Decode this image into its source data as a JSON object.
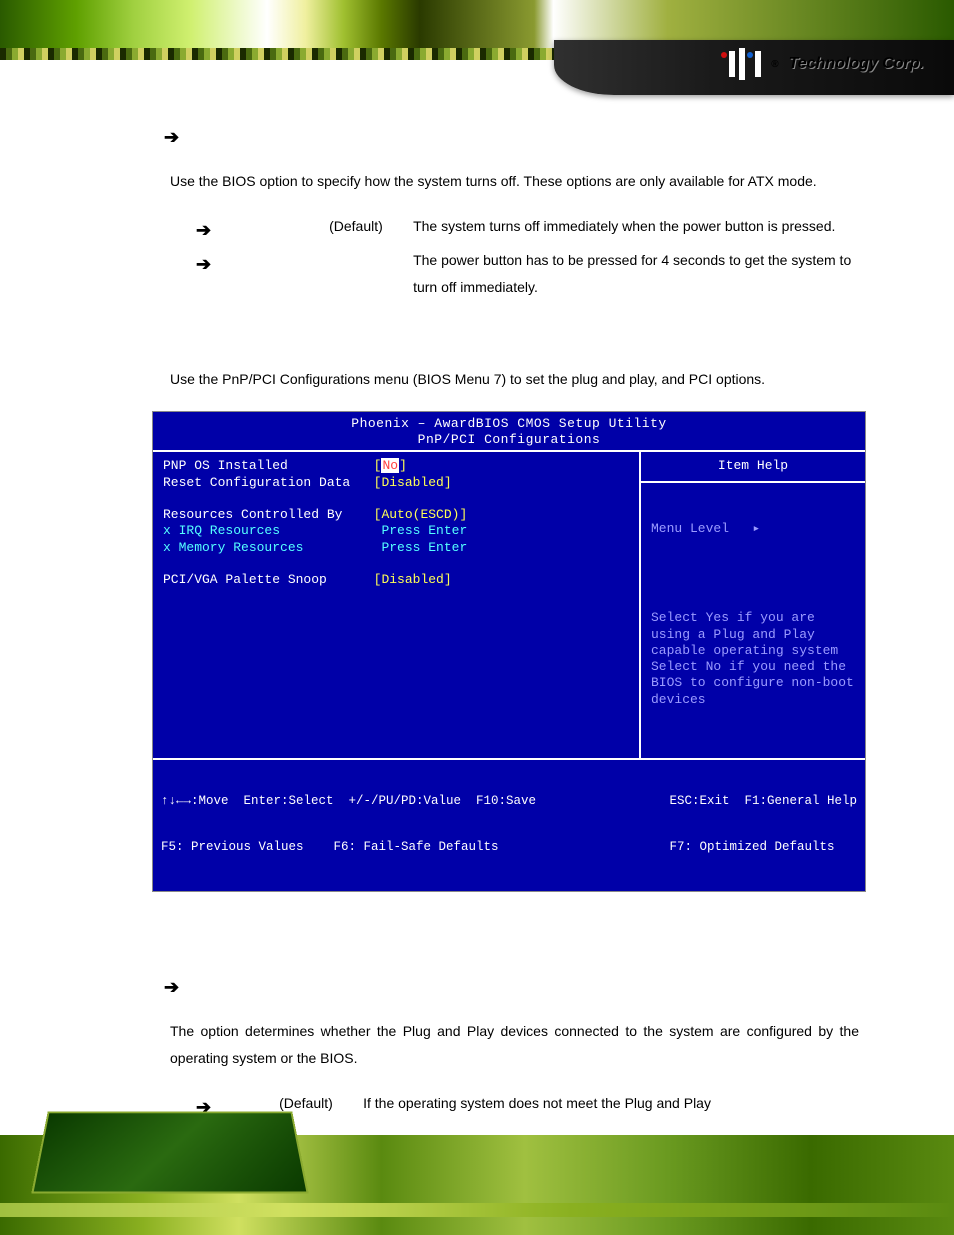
{
  "header": {
    "logo_company": "Technology Corp.",
    "logo_reg": "®"
  },
  "section1": {
    "intro": "Use the                                   BIOS option to specify how the system turns off. These options are only available for ATX mode.",
    "options": [
      {
        "default_label": "(Default)",
        "desc": "The system turns off immediately when the power button is pressed."
      },
      {
        "default_label": "",
        "desc": "The power button has to be pressed for 4 seconds to get the system to turn off immediately."
      }
    ]
  },
  "section2": {
    "intro": "Use the PnP/PCI Configurations menu (BIOS Menu 7) to set the plug and play, and PCI options."
  },
  "bios": {
    "title1": "Phoenix – AwardBIOS CMOS Setup Utility",
    "title2": "PnP/PCI Configurations",
    "rows": [
      {
        "label": "PNP OS Installed",
        "value_pre": "[",
        "value_mid": "No",
        "value_post": "]",
        "label_color": "white",
        "pre_color": "yellow",
        "mid_color": "red",
        "post_color": "yellow"
      },
      {
        "label": "Reset Configuration Data",
        "value_pre": "",
        "value_mid": "[Disabled]",
        "value_post": "",
        "label_color": "white",
        "pre_color": "",
        "mid_color": "yellow",
        "post_color": ""
      },
      {
        "label": "",
        "value_pre": "",
        "value_mid": "",
        "value_post": "",
        "label_color": "",
        "pre_color": "",
        "mid_color": "",
        "post_color": ""
      },
      {
        "label": "Resources Controlled By",
        "value_pre": "",
        "value_mid": "[Auto(ESCD)]",
        "value_post": "",
        "label_color": "white",
        "pre_color": "",
        "mid_color": "yellow",
        "post_color": ""
      },
      {
        "label": "x IRQ Resources",
        "value_pre": "",
        "value_mid": " Press Enter",
        "value_post": "",
        "label_color": "cyan",
        "pre_color": "",
        "mid_color": "cyan",
        "post_color": ""
      },
      {
        "label": "x Memory Resources",
        "value_pre": "",
        "value_mid": " Press Enter",
        "value_post": "",
        "label_color": "cyan",
        "pre_color": "",
        "mid_color": "cyan",
        "post_color": ""
      },
      {
        "label": "",
        "value_pre": "",
        "value_mid": "",
        "value_post": "",
        "label_color": "",
        "pre_color": "",
        "mid_color": "",
        "post_color": ""
      },
      {
        "label": "PCI/VGA Palette Snoop",
        "value_pre": "",
        "value_mid": "[Disabled]",
        "value_post": "",
        "label_color": "white",
        "pre_color": "",
        "mid_color": "yellow",
        "post_color": ""
      }
    ],
    "help_title": "Item Help",
    "menu_level": "Menu Level   ▸",
    "help_text": "Select Yes if you are using a Plug and Play capable operating system Select No if you need the BIOS to configure non-boot devices",
    "footer_l1_left": "↑↓←→:Move  Enter:Select  +/-/PU/PD:Value  F10:Save",
    "footer_l1_right": "ESC:Exit  F1:General Help",
    "footer_l2_left": "F5: Previous Values    F6: Fail-Safe Defaults",
    "footer_l2_right": "F7: Optimized Defaults"
  },
  "section3": {
    "intro": "The                              option determines whether the Plug and Play devices connected to the system are configured by the operating system or the BIOS.",
    "option": {
      "default_label": "(Default)",
      "desc": "If the operating system does not meet the Plug and Play"
    }
  },
  "colors": {
    "bios_bg": "#0000a8",
    "bios_yellow": "#ffff55",
    "bios_cyan": "#55ffff",
    "bios_gray": "#9b9bff",
    "bios_white": "#ffffff",
    "bios_red": "#ff4040"
  }
}
